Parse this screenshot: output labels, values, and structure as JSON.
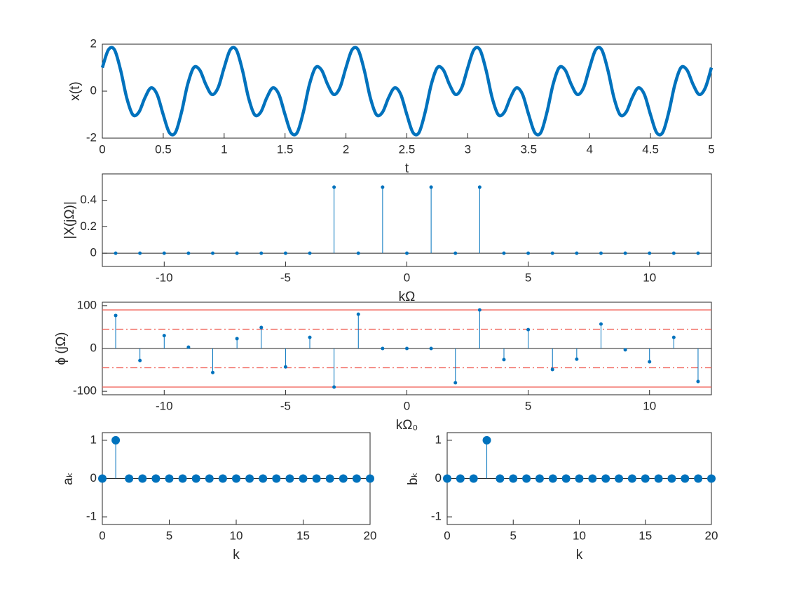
{
  "chart_data": [
    {
      "type": "line",
      "xlabel": "t",
      "ylabel": "x(t)",
      "color": "#0072bd",
      "x": [
        0,
        0.05,
        0.1,
        0.15,
        0.2,
        0.25,
        0.3,
        0.35,
        0.4,
        0.45,
        0.5,
        0.55,
        0.6,
        0.65,
        0.7,
        0.75,
        0.8,
        0.85,
        0.9,
        0.95,
        1,
        1.05,
        1.1,
        1.15,
        1.2,
        1.25,
        1.3,
        1.35,
        1.4,
        1.45,
        1.5,
        1.55,
        1.6,
        1.65,
        1.7,
        1.75,
        1.8,
        1.85,
        1.9,
        1.95,
        2,
        2.05,
        2.1,
        2.15,
        2.2,
        2.25,
        2.3,
        2.35,
        2.4,
        2.45,
        2.5,
        2.55,
        2.6,
        2.65,
        2.7,
        2.75,
        2.8,
        2.85,
        2.9,
        2.95,
        3,
        3.05,
        3.1,
        3.15,
        3.2,
        3.25,
        3.3,
        3.35,
        3.4,
        3.45,
        3.5,
        3.55,
        3.6,
        3.65,
        3.7,
        3.75,
        3.8,
        3.85,
        3.9,
        3.95,
        4,
        4.05,
        4.1,
        4.15,
        4.2,
        4.25,
        4.3,
        4.35,
        4.4,
        4.45,
        4.5,
        4.55,
        4.6,
        4.65,
        4.7,
        4.75,
        4.8,
        4.85,
        4.9,
        4.95,
        5
      ],
      "values": [
        1,
        1.76,
        1.76,
        0.897,
        -0.279,
        -1,
        -0.897,
        -0.279,
        0.142,
        -0.142,
        -1,
        -1.76,
        -1.76,
        -0.897,
        0.279,
        1,
        0.897,
        0.279,
        -0.142,
        0.142,
        1,
        1.76,
        1.76,
        0.897,
        -0.279,
        -1,
        -0.897,
        -0.279,
        0.142,
        -0.142,
        -1,
        -1.76,
        -1.76,
        -0.897,
        0.279,
        1,
        0.897,
        0.279,
        -0.142,
        0.142,
        1,
        1.76,
        1.76,
        0.897,
        -0.279,
        -1,
        -0.897,
        -0.279,
        0.142,
        -0.142,
        -1,
        -1.76,
        -1.76,
        -0.897,
        0.279,
        1,
        0.897,
        0.279,
        -0.142,
        0.142,
        1,
        1.76,
        1.76,
        0.897,
        -0.279,
        -1,
        -0.897,
        -0.279,
        0.142,
        -0.142,
        -1,
        -1.76,
        -1.76,
        -0.897,
        0.279,
        1,
        0.897,
        0.279,
        -0.142,
        0.142,
        1,
        1.76,
        1.76,
        0.897,
        -0.279,
        -1,
        -0.897,
        -0.279,
        0.142,
        -0.142,
        -1,
        -1.76,
        -1.76,
        -0.897,
        0.279,
        1,
        0.897,
        0.279,
        -0.142,
        0.142,
        1
      ],
      "xlim": [
        0,
        5
      ],
      "xticks": [
        0,
        0.5,
        1,
        1.5,
        2,
        2.5,
        3,
        3.5,
        4,
        4.5,
        5
      ],
      "ylim": [
        -2,
        2
      ],
      "yticks": [
        -2,
        0,
        2
      ]
    },
    {
      "type": "stem",
      "xlabel": "kΩ",
      "ylabel": "|X(jΩ)|",
      "color": "#0072bd",
      "x": [
        -12,
        -11,
        -10,
        -9,
        -8,
        -7,
        -6,
        -5,
        -4,
        -3,
        -2,
        -1,
        0,
        1,
        2,
        3,
        4,
        5,
        6,
        7,
        8,
        9,
        10,
        11,
        12
      ],
      "values": [
        0,
        0,
        0,
        0,
        0,
        0,
        0,
        0,
        0,
        0.5,
        0,
        0.5,
        0,
        0.5,
        0,
        0.5,
        0,
        0,
        0,
        0,
        0,
        0,
        0,
        0,
        0
      ],
      "xlim": [
        -12.55,
        12.55
      ],
      "xticks": [
        -10,
        -5,
        0,
        5,
        10
      ],
      "ylim": [
        -0.1,
        0.6
      ],
      "yticks": [
        0,
        0.2,
        0.4
      ]
    },
    {
      "type": "stem",
      "xlabel": "kΩ₀",
      "ylabel": "ϕ (jΩ)",
      "color": "#0072bd",
      "x": [
        -12,
        -11,
        -10,
        -9,
        -8,
        -7,
        -6,
        -5,
        -4,
        -3,
        -2,
        -1,
        0,
        1,
        2,
        3,
        4,
        5,
        6,
        7,
        8,
        9,
        10,
        11,
        12
      ],
      "values": [
        77,
        -28,
        30,
        3,
        -56,
        23,
        49,
        -43,
        26,
        -90,
        80,
        0,
        0,
        0,
        -80,
        90,
        -26,
        44,
        -49,
        -25,
        57,
        -3,
        -31,
        26,
        -77
      ],
      "xlim": [
        -12.55,
        12.55
      ],
      "xticks": [
        -10,
        -5,
        0,
        5,
        10
      ],
      "ylim": [
        -108,
        108
      ],
      "yticks": [
        -100,
        0,
        100
      ],
      "reference_lines": [
        {
          "value": 90,
          "style": "solid"
        },
        {
          "value": 45,
          "style": "dashdot"
        },
        {
          "value": -45,
          "style": "dashdot"
        },
        {
          "value": -90,
          "style": "solid"
        }
      ],
      "reference_color": "#f05a50"
    },
    {
      "type": "stem",
      "xlabel": "k",
      "ylabel": "aₖ",
      "color": "#0072bd",
      "x": [
        0,
        1,
        2,
        3,
        4,
        5,
        6,
        7,
        8,
        9,
        10,
        11,
        12,
        13,
        14,
        15,
        16,
        17,
        18,
        19,
        20
      ],
      "values": [
        0,
        1,
        0,
        0,
        0,
        0,
        0,
        0,
        0,
        0,
        0,
        0,
        0,
        0,
        0,
        0,
        0,
        0,
        0,
        0,
        0
      ],
      "xlim": [
        0,
        20
      ],
      "xticks": [
        0,
        5,
        10,
        15,
        20
      ],
      "ylim": [
        -1.2,
        1.2
      ],
      "yticks": [
        -1,
        0,
        1
      ]
    },
    {
      "type": "stem",
      "xlabel": "k",
      "ylabel": "bₖ",
      "color": "#0072bd",
      "x": [
        0,
        1,
        2,
        3,
        4,
        5,
        6,
        7,
        8,
        9,
        10,
        11,
        12,
        13,
        14,
        15,
        16,
        17,
        18,
        19,
        20
      ],
      "values": [
        0,
        0,
        0,
        1,
        0,
        0,
        0,
        0,
        0,
        0,
        0,
        0,
        0,
        0,
        0,
        0,
        0,
        0,
        0,
        0,
        0
      ],
      "xlim": [
        0,
        20
      ],
      "xticks": [
        0,
        5,
        10,
        15,
        20
      ],
      "ylim": [
        -1.2,
        1.2
      ],
      "yticks": [
        -1,
        0,
        1
      ]
    }
  ]
}
